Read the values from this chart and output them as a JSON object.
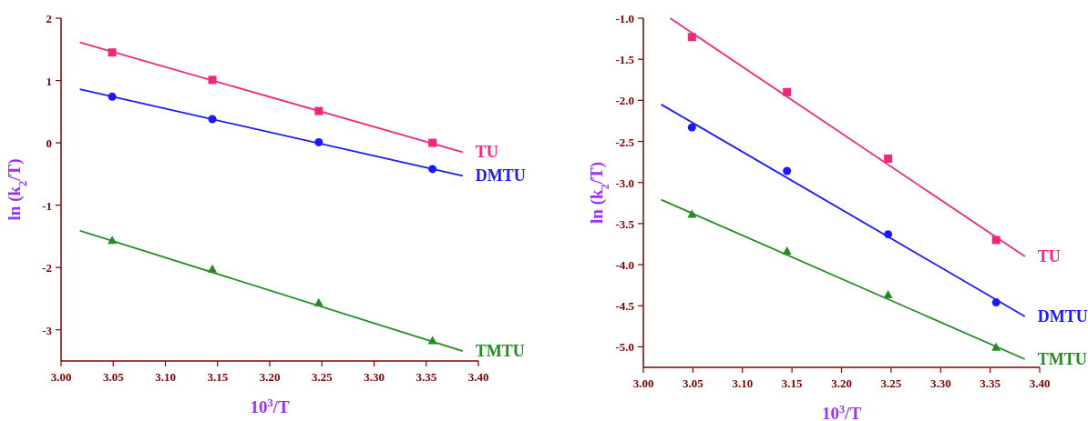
{
  "chart_data": [
    {
      "type": "scatter",
      "xlabel": "10$^{3}$/T",
      "ylabel": "ln (k$_{2}$/T)",
      "xlim": [
        3.0,
        3.4
      ],
      "ylim": [
        -3.5,
        2
      ],
      "xticks": [
        {
          "value": 3.0,
          "label": "3.00"
        },
        {
          "value": 3.05,
          "label": "3.05"
        },
        {
          "value": 3.1,
          "label": "3.10"
        },
        {
          "value": 3.15,
          "label": "3.15"
        },
        {
          "value": 3.2,
          "label": "3.20"
        },
        {
          "value": 3.25,
          "label": "3.25"
        },
        {
          "value": 3.3,
          "label": "3.30"
        },
        {
          "value": 3.35,
          "label": "3.35"
        },
        {
          "value": 3.4,
          "label": "3.40"
        }
      ],
      "yticks": [
        -3,
        -2,
        -1,
        0,
        1,
        2
      ],
      "grid": false,
      "series": [
        {
          "color": "#f0287a",
          "marker": "square",
          "x": [
            3.049,
            3.145,
            3.247,
            3.356
          ],
          "values": [
            1.45,
            1.01,
            0.51,
            0.0
          ]
        },
        {
          "color": "#1a1aff",
          "marker": "circle",
          "x": [
            3.049,
            3.145,
            3.247,
            3.356
          ],
          "values": [
            0.74,
            0.38,
            0.01,
            -0.42
          ]
        },
        {
          "color": "#228b22",
          "marker": "triangle",
          "x": [
            3.049,
            3.145,
            3.247,
            3.356
          ],
          "values": [
            -1.57,
            -2.03,
            -2.57,
            -3.18
          ]
        },
        {
          "type": "line",
          "name": "TU",
          "color": "#f0287a",
          "marker": "none",
          "x": [
            3.018,
            3.385
          ],
          "values": [
            1.61,
            -0.15
          ]
        },
        {
          "type": "line",
          "name": "DMTU",
          "color": "#1a1aff",
          "marker": "none",
          "x": [
            3.018,
            3.385
          ],
          "values": [
            0.86,
            -0.53
          ]
        },
        {
          "type": "line",
          "name": "TMTU",
          "color": "#228b22",
          "marker": "none",
          "x": [
            3.018,
            3.385
          ],
          "values": [
            -1.41,
            -3.34
          ]
        }
      ]
    },
    {
      "type": "scatter",
      "xlabel": "10$^{3}$/T",
      "ylabel": "ln (k$_{2}$/T)",
      "xlim": [
        3.0,
        3.4
      ],
      "ylim": [
        -5.25,
        -1.0
      ],
      "xticks": [
        {
          "value": 3.0,
          "label": "3.00"
        },
        {
          "value": 3.05,
          "label": "3.05"
        },
        {
          "value": 3.1,
          "label": "3.10"
        },
        {
          "value": 3.15,
          "label": "3.15"
        },
        {
          "value": 3.2,
          "label": "3.20"
        },
        {
          "value": 3.25,
          "label": "3.25"
        },
        {
          "value": 3.3,
          "label": "3.30"
        },
        {
          "value": 3.35,
          "label": "3.35"
        },
        {
          "value": 3.4,
          "label": "3.40"
        }
      ],
      "yticks": [
        {
          "value": -5,
          "label": "-5.0"
        },
        {
          "value": -4.5,
          "label": "-4.5"
        },
        {
          "value": -4,
          "label": "-4.0"
        },
        {
          "value": -3.5,
          "label": "-3.5"
        },
        {
          "value": -3,
          "label": "-3.0"
        },
        {
          "value": -2.5,
          "label": "-2.5"
        },
        {
          "value": -2,
          "label": "-2.0"
        },
        {
          "value": -1.5,
          "label": "-1.5"
        },
        {
          "value": -1,
          "label": "-1.0"
        }
      ],
      "grid": false,
      "series": [
        {
          "color": "#f0287a",
          "marker": "square",
          "x": [
            3.049,
            3.145,
            3.247,
            3.356
          ],
          "values": [
            -1.23,
            -1.9,
            -2.71,
            -3.7
          ]
        },
        {
          "color": "#1a1aff",
          "marker": "circle",
          "x": [
            3.049,
            3.145,
            3.247,
            3.356
          ],
          "values": [
            -2.33,
            -2.86,
            -3.63,
            -4.46
          ]
        },
        {
          "color": "#228b22",
          "marker": "triangle",
          "x": [
            3.049,
            3.145,
            3.247,
            3.356
          ],
          "values": [
            -3.39,
            -3.84,
            -4.37,
            -5.01
          ]
        },
        {
          "type": "line",
          "name": "TU",
          "color": "#f0287a",
          "marker": "none",
          "x": [
            3.027,
            3.385
          ],
          "values": [
            -1.0,
            -3.9
          ]
        },
        {
          "type": "line",
          "name": "DMTU",
          "color": "#1a1aff",
          "marker": "none",
          "x": [
            3.018,
            3.385
          ],
          "values": [
            -2.05,
            -4.63
          ]
        },
        {
          "type": "line",
          "name": "TMTU",
          "color": "#228b22",
          "marker": "none",
          "x": [
            3.018,
            3.385
          ],
          "values": [
            -3.21,
            -5.15
          ]
        }
      ]
    }
  ]
}
